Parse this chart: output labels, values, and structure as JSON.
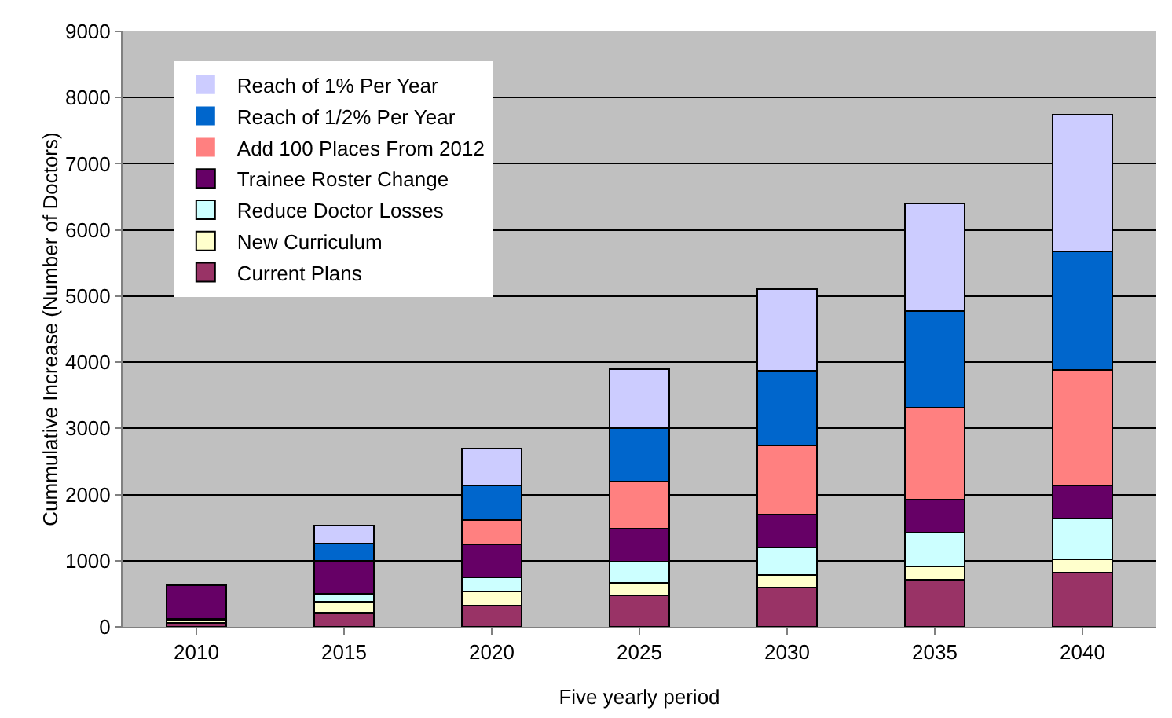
{
  "chart_data": {
    "type": "bar",
    "stacked": true,
    "xlabel": "Five yearly period",
    "ylabel": "Cummulative Increase (Number of Doctors)",
    "categories": [
      "2010",
      "2015",
      "2020",
      "2025",
      "2030",
      "2035",
      "2040"
    ],
    "series": [
      {
        "name": "Current Plans",
        "color": "#993366",
        "values": [
          60,
          210,
          320,
          470,
          590,
          710,
          820
        ]
      },
      {
        "name": "New Curriculum",
        "color": "#ffffcc",
        "values": [
          30,
          170,
          210,
          200,
          190,
          200,
          200
        ]
      },
      {
        "name": "Reduce Doctor Losses",
        "color": "#ccffff",
        "values": [
          30,
          120,
          220,
          320,
          420,
          510,
          620
        ]
      },
      {
        "name": "Trainee Roster Change",
        "color": "#660066",
        "values": [
          510,
          500,
          500,
          500,
          500,
          500,
          500
        ]
      },
      {
        "name": "Add 100 Places From 2012",
        "color": "#ff8080",
        "values": [
          0,
          0,
          360,
          710,
          1040,
          1390,
          1740
        ]
      },
      {
        "name": "Reach of 1/2% Per Year",
        "color": "#0066cc",
        "values": [
          0,
          260,
          530,
          810,
          1130,
          1460,
          1790
        ]
      },
      {
        "name": "Reach of 1% Per Year",
        "color": "#ccccff",
        "values": [
          0,
          270,
          550,
          890,
          1240,
          1630,
          2070
        ]
      }
    ],
    "ylim": [
      0,
      9000
    ],
    "yticks": [
      0,
      1000,
      2000,
      3000,
      4000,
      5000,
      6000,
      7000,
      8000,
      9000
    ],
    "grid": "y",
    "legend": "top left"
  }
}
